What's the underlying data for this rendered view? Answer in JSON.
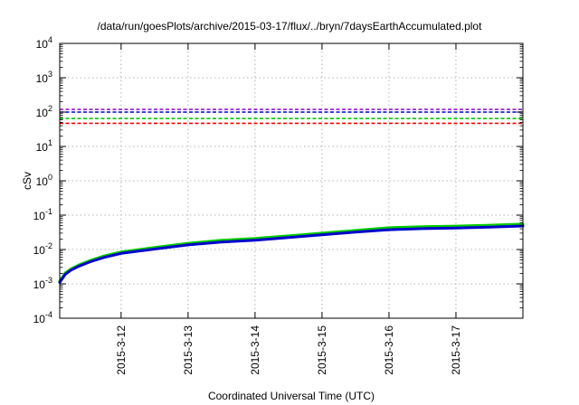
{
  "chart_data": {
    "type": "line",
    "title": "/data/run/goesPlots/archive/2015-03-17/flux/../bryn/7daysEarthAccumulated.plot",
    "xlabel": "Coordinated Universal Time (UTC)",
    "ylabel": "cSv",
    "y_scale": "log",
    "ylim": [
      0.0001,
      10000
    ],
    "y_ticks": [
      {
        "base": "10",
        "exp": "-4",
        "value": 0.0001
      },
      {
        "base": "10",
        "exp": "-3",
        "value": 0.001
      },
      {
        "base": "10",
        "exp": "-2",
        "value": 0.01
      },
      {
        "base": "10",
        "exp": "-1",
        "value": 0.1
      },
      {
        "base": "10",
        "exp": "0",
        "value": 1
      },
      {
        "base": "10",
        "exp": "1",
        "value": 10
      },
      {
        "base": "10",
        "exp": "2",
        "value": 100
      },
      {
        "base": "10",
        "exp": "3",
        "value": 1000
      },
      {
        "base": "10",
        "exp": "4",
        "value": 10000
      }
    ],
    "xlim": [
      "2015-03-11T02:00",
      "2015-03-18T00:00"
    ],
    "x_ticks": [
      {
        "label": "2015-3-12",
        "value": "2015-03-12T00:00"
      },
      {
        "label": "2015-3-13",
        "value": "2015-03-13T00:00"
      },
      {
        "label": "2015-3-14",
        "value": "2015-03-14T00:00"
      },
      {
        "label": "2015-3-15",
        "value": "2015-03-15T00:00"
      },
      {
        "label": "2015-3-16",
        "value": "2015-03-16T00:00"
      },
      {
        "label": "2015-3-17",
        "value": "2015-03-17T00:00"
      }
    ],
    "grid": true,
    "thresholds": [
      {
        "color": "#9400d3",
        "value": 120
      },
      {
        "color": "#0000cd",
        "value": 100
      },
      {
        "color": "#00cc00",
        "value": 65
      },
      {
        "color": "#ff0000",
        "value": 47
      }
    ],
    "series": [
      {
        "color": "#00cc00",
        "x": [
          "2015-03-11T02:00",
          "2015-03-11T04:00",
          "2015-03-11T06:00",
          "2015-03-11T09:00",
          "2015-03-11T13:00",
          "2015-03-11T18:00",
          "2015-03-12T00:00",
          "2015-03-12T12:00",
          "2015-03-13T00:00",
          "2015-03-13T12:00",
          "2015-03-14T00:00",
          "2015-03-14T12:00",
          "2015-03-15T00:00",
          "2015-03-15T12:00",
          "2015-03-16T00:00",
          "2015-03-16T12:00",
          "2015-03-17T00:00",
          "2015-03-17T12:00",
          "2015-03-18T00:00"
        ],
        "values": [
          0.0012,
          0.0021,
          0.0027,
          0.0036,
          0.0048,
          0.0065,
          0.0085,
          0.0115,
          0.0152,
          0.0185,
          0.021,
          0.025,
          0.03,
          0.036,
          0.043,
          0.046,
          0.048,
          0.051,
          0.055
        ]
      },
      {
        "color": "#0000cd",
        "x": [
          "2015-03-11T02:00",
          "2015-03-11T04:00",
          "2015-03-11T06:00",
          "2015-03-11T09:00",
          "2015-03-11T13:00",
          "2015-03-11T18:00",
          "2015-03-12T00:00",
          "2015-03-12T12:00",
          "2015-03-13T00:00",
          "2015-03-13T12:00",
          "2015-03-14T00:00",
          "2015-03-14T12:00",
          "2015-03-15T00:00",
          "2015-03-15T12:00",
          "2015-03-16T00:00",
          "2015-03-16T12:00",
          "2015-03-17T00:00",
          "2015-03-17T12:00",
          "2015-03-18T00:00"
        ],
        "values": [
          0.0011,
          0.0019,
          0.0025,
          0.0033,
          0.0044,
          0.0059,
          0.0077,
          0.0103,
          0.0136,
          0.0164,
          0.0187,
          0.0223,
          0.0268,
          0.032,
          0.0378,
          0.0405,
          0.0424,
          0.0449,
          0.0484
        ]
      }
    ]
  }
}
